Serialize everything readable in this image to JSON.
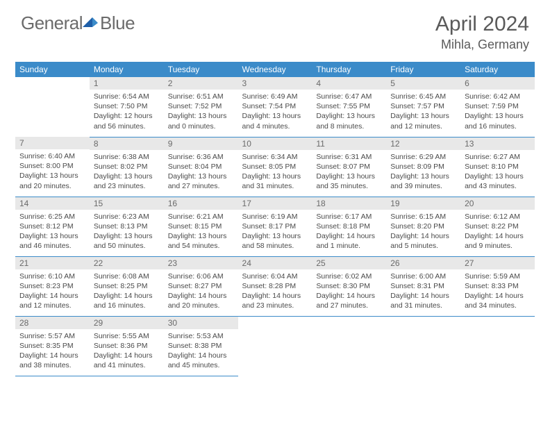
{
  "brand": {
    "part1": "General",
    "part2": "Blue"
  },
  "title": "April 2024",
  "location": "Mihla, Germany",
  "dow": [
    "Sunday",
    "Monday",
    "Tuesday",
    "Wednesday",
    "Thursday",
    "Friday",
    "Saturday"
  ],
  "colors": {
    "header_bg": "#3b8bc9",
    "daynum_bg": "#e8e8e8",
    "border": "#3b8bc9",
    "logo_accent": "#1f5fa8"
  },
  "weeks": [
    [
      null,
      {
        "n": "1",
        "sr": "Sunrise: 6:54 AM",
        "ss": "Sunset: 7:50 PM",
        "d1": "Daylight: 12 hours",
        "d2": "and 56 minutes."
      },
      {
        "n": "2",
        "sr": "Sunrise: 6:51 AM",
        "ss": "Sunset: 7:52 PM",
        "d1": "Daylight: 13 hours",
        "d2": "and 0 minutes."
      },
      {
        "n": "3",
        "sr": "Sunrise: 6:49 AM",
        "ss": "Sunset: 7:54 PM",
        "d1": "Daylight: 13 hours",
        "d2": "and 4 minutes."
      },
      {
        "n": "4",
        "sr": "Sunrise: 6:47 AM",
        "ss": "Sunset: 7:55 PM",
        "d1": "Daylight: 13 hours",
        "d2": "and 8 minutes."
      },
      {
        "n": "5",
        "sr": "Sunrise: 6:45 AM",
        "ss": "Sunset: 7:57 PM",
        "d1": "Daylight: 13 hours",
        "d2": "and 12 minutes."
      },
      {
        "n": "6",
        "sr": "Sunrise: 6:42 AM",
        "ss": "Sunset: 7:59 PM",
        "d1": "Daylight: 13 hours",
        "d2": "and 16 minutes."
      }
    ],
    [
      {
        "n": "7",
        "sr": "Sunrise: 6:40 AM",
        "ss": "Sunset: 8:00 PM",
        "d1": "Daylight: 13 hours",
        "d2": "and 20 minutes."
      },
      {
        "n": "8",
        "sr": "Sunrise: 6:38 AM",
        "ss": "Sunset: 8:02 PM",
        "d1": "Daylight: 13 hours",
        "d2": "and 23 minutes."
      },
      {
        "n": "9",
        "sr": "Sunrise: 6:36 AM",
        "ss": "Sunset: 8:04 PM",
        "d1": "Daylight: 13 hours",
        "d2": "and 27 minutes."
      },
      {
        "n": "10",
        "sr": "Sunrise: 6:34 AM",
        "ss": "Sunset: 8:05 PM",
        "d1": "Daylight: 13 hours",
        "d2": "and 31 minutes."
      },
      {
        "n": "11",
        "sr": "Sunrise: 6:31 AM",
        "ss": "Sunset: 8:07 PM",
        "d1": "Daylight: 13 hours",
        "d2": "and 35 minutes."
      },
      {
        "n": "12",
        "sr": "Sunrise: 6:29 AM",
        "ss": "Sunset: 8:09 PM",
        "d1": "Daylight: 13 hours",
        "d2": "and 39 minutes."
      },
      {
        "n": "13",
        "sr": "Sunrise: 6:27 AM",
        "ss": "Sunset: 8:10 PM",
        "d1": "Daylight: 13 hours",
        "d2": "and 43 minutes."
      }
    ],
    [
      {
        "n": "14",
        "sr": "Sunrise: 6:25 AM",
        "ss": "Sunset: 8:12 PM",
        "d1": "Daylight: 13 hours",
        "d2": "and 46 minutes."
      },
      {
        "n": "15",
        "sr": "Sunrise: 6:23 AM",
        "ss": "Sunset: 8:13 PM",
        "d1": "Daylight: 13 hours",
        "d2": "and 50 minutes."
      },
      {
        "n": "16",
        "sr": "Sunrise: 6:21 AM",
        "ss": "Sunset: 8:15 PM",
        "d1": "Daylight: 13 hours",
        "d2": "and 54 minutes."
      },
      {
        "n": "17",
        "sr": "Sunrise: 6:19 AM",
        "ss": "Sunset: 8:17 PM",
        "d1": "Daylight: 13 hours",
        "d2": "and 58 minutes."
      },
      {
        "n": "18",
        "sr": "Sunrise: 6:17 AM",
        "ss": "Sunset: 8:18 PM",
        "d1": "Daylight: 14 hours",
        "d2": "and 1 minute."
      },
      {
        "n": "19",
        "sr": "Sunrise: 6:15 AM",
        "ss": "Sunset: 8:20 PM",
        "d1": "Daylight: 14 hours",
        "d2": "and 5 minutes."
      },
      {
        "n": "20",
        "sr": "Sunrise: 6:12 AM",
        "ss": "Sunset: 8:22 PM",
        "d1": "Daylight: 14 hours",
        "d2": "and 9 minutes."
      }
    ],
    [
      {
        "n": "21",
        "sr": "Sunrise: 6:10 AM",
        "ss": "Sunset: 8:23 PM",
        "d1": "Daylight: 14 hours",
        "d2": "and 12 minutes."
      },
      {
        "n": "22",
        "sr": "Sunrise: 6:08 AM",
        "ss": "Sunset: 8:25 PM",
        "d1": "Daylight: 14 hours",
        "d2": "and 16 minutes."
      },
      {
        "n": "23",
        "sr": "Sunrise: 6:06 AM",
        "ss": "Sunset: 8:27 PM",
        "d1": "Daylight: 14 hours",
        "d2": "and 20 minutes."
      },
      {
        "n": "24",
        "sr": "Sunrise: 6:04 AM",
        "ss": "Sunset: 8:28 PM",
        "d1": "Daylight: 14 hours",
        "d2": "and 23 minutes."
      },
      {
        "n": "25",
        "sr": "Sunrise: 6:02 AM",
        "ss": "Sunset: 8:30 PM",
        "d1": "Daylight: 14 hours",
        "d2": "and 27 minutes."
      },
      {
        "n": "26",
        "sr": "Sunrise: 6:00 AM",
        "ss": "Sunset: 8:31 PM",
        "d1": "Daylight: 14 hours",
        "d2": "and 31 minutes."
      },
      {
        "n": "27",
        "sr": "Sunrise: 5:59 AM",
        "ss": "Sunset: 8:33 PM",
        "d1": "Daylight: 14 hours",
        "d2": "and 34 minutes."
      }
    ],
    [
      {
        "n": "28",
        "sr": "Sunrise: 5:57 AM",
        "ss": "Sunset: 8:35 PM",
        "d1": "Daylight: 14 hours",
        "d2": "and 38 minutes."
      },
      {
        "n": "29",
        "sr": "Sunrise: 5:55 AM",
        "ss": "Sunset: 8:36 PM",
        "d1": "Daylight: 14 hours",
        "d2": "and 41 minutes."
      },
      {
        "n": "30",
        "sr": "Sunrise: 5:53 AM",
        "ss": "Sunset: 8:38 PM",
        "d1": "Daylight: 14 hours",
        "d2": "and 45 minutes."
      },
      null,
      null,
      null,
      null
    ]
  ]
}
